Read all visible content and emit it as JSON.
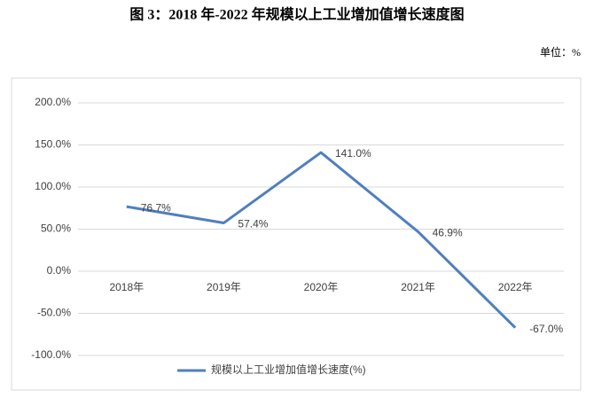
{
  "chart_data": {
    "type": "line",
    "title": "图 3：2018 年-2022 年规模以上工业增加值增长速度图",
    "unit": "单位：%",
    "categories": [
      "2018年",
      "2019年",
      "2020年",
      "2021年",
      "2022年"
    ],
    "series": [
      {
        "name": "规模以上工业增加值增长速度(%)",
        "color": "#4f7fc0",
        "values": [
          76.7,
          57.4,
          141.0,
          46.9,
          -67.0
        ],
        "value_labels": [
          "76.7%",
          "57.4%",
          "141.0%",
          "46.9%",
          "-67.0%"
        ]
      }
    ],
    "ylim": [
      -100,
      200
    ],
    "yticks": [
      {
        "value": -100,
        "label": "-100.0%"
      },
      {
        "value": -50,
        "label": "-50.0%"
      },
      {
        "value": 0,
        "label": "0.0%"
      },
      {
        "value": 50,
        "label": "50.0%"
      },
      {
        "value": 100,
        "label": "100.0%"
      },
      {
        "value": 150,
        "label": "150.0%"
      },
      {
        "value": 200,
        "label": "200.0%"
      }
    ],
    "grid": true,
    "legend": "bottom"
  }
}
